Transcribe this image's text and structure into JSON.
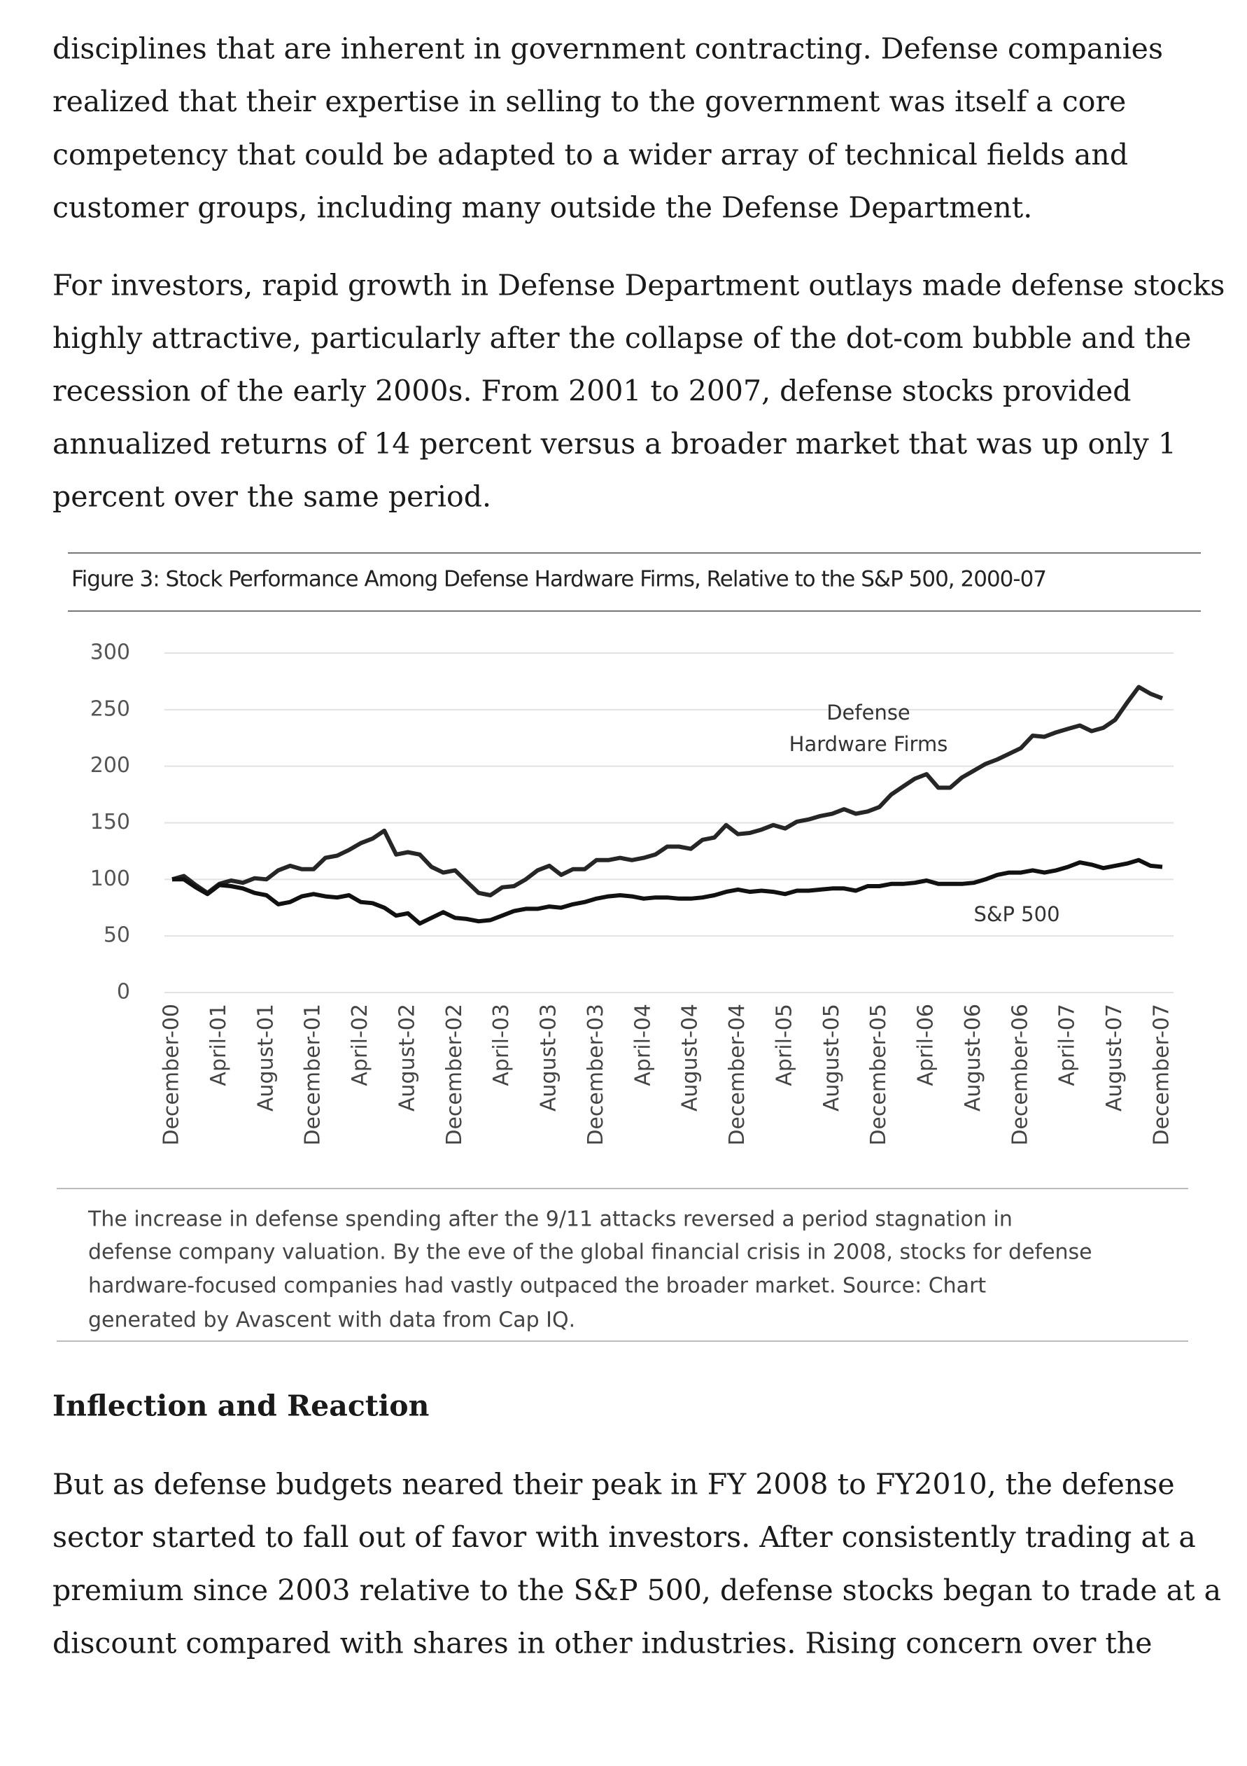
{
  "paragraph_1": [
    "disciplines that are inherent in government contracting. Defense companies",
    "realized that their expertise in selling to the government was itself a core",
    "competency that could be adapted to a wider array of technical fields and",
    "customer groups, including many outside the Defense Department."
  ],
  "paragraph_2": [
    "For investors, rapid growth in Defense Department outlays made defense stocks",
    "highly attractive, particularly after the collapse of the dot-com bubble and the",
    "recession of the early 2000s. From 2001 to 2007, defense stocks provided",
    "annualized returns of 14 percent versus a broader market that was up only 1",
    "percent over the same period."
  ],
  "chart_data": {
    "type": "line",
    "title": "Figure 3: Stock Performance Among Defense Hardware Firms, Relative to the S&P 500, 2000-07",
    "categories": [
      "December-00",
      null,
      null,
      null,
      "April-01",
      null,
      null,
      null,
      "August-01",
      null,
      null,
      null,
      "December-01",
      null,
      null,
      null,
      "April-02",
      null,
      null,
      null,
      "August-02",
      null,
      null,
      null,
      "December-02",
      null,
      null,
      null,
      "April-03",
      null,
      null,
      null,
      "August-03",
      null,
      null,
      null,
      "December-03",
      null,
      null,
      null,
      "April-04",
      null,
      null,
      null,
      "August-04",
      null,
      null,
      null,
      "December-04",
      null,
      null,
      null,
      "April-05",
      null,
      null,
      null,
      "August-05",
      null,
      null,
      null,
      "December-05",
      null,
      null,
      null,
      "April-06",
      null,
      null,
      null,
      "August-06",
      null,
      null,
      null,
      "December-06",
      null,
      null,
      null,
      "April-07",
      null,
      null,
      null,
      "August-07",
      null,
      null,
      null,
      "December-07"
    ],
    "series": [
      {
        "name": "Defense Hardware Firms",
        "color": "#262626",
        "values": [
          100,
          103,
          95,
          88,
          96,
          99,
          97,
          101,
          100,
          108,
          112,
          109,
          109,
          119,
          121,
          126,
          132,
          136,
          143,
          122,
          124,
          122,
          111,
          106,
          108,
          98,
          88,
          86,
          93,
          94,
          100,
          108,
          112,
          104,
          109,
          109,
          117,
          117,
          119,
          117,
          119,
          122,
          129,
          129,
          127,
          135,
          137,
          148,
          140,
          141,
          144,
          148,
          145,
          151,
          153,
          156,
          158,
          162,
          158,
          160,
          164,
          175,
          182,
          189,
          193,
          181,
          181,
          190,
          196,
          202,
          206,
          211,
          216,
          227,
          226,
          230,
          233,
          236,
          231,
          234,
          241,
          256,
          270,
          264,
          260
        ]
      },
      {
        "name": "S&P 500",
        "color": "#111111",
        "values": [
          100,
          100,
          93,
          87,
          95,
          94,
          92,
          88,
          86,
          78,
          80,
          85,
          87,
          85,
          84,
          86,
          80,
          79,
          75,
          68,
          70,
          61,
          66,
          71,
          66,
          65,
          63,
          64,
          68,
          72,
          74,
          74,
          76,
          75,
          78,
          80,
          83,
          85,
          86,
          85,
          83,
          84,
          84,
          83,
          83,
          84,
          86,
          89,
          91,
          89,
          90,
          89,
          87,
          90,
          90,
          91,
          92,
          92,
          90,
          94,
          94,
          96,
          96,
          97,
          99,
          96,
          96,
          96,
          97,
          100,
          104,
          106,
          106,
          108,
          106,
          108,
          111,
          115,
          113,
          110,
          112,
          114,
          117,
          112,
          111
        ]
      }
    ],
    "ylim": [
      0,
      300
    ],
    "yticks": [
      0,
      50,
      100,
      150,
      200,
      250,
      300
    ],
    "grid": true
  },
  "caption": [
    "The increase in defense spending after the 9/11 attacks reversed a period stagnation in",
    "defense company valuation. By the eve of the global financial crisis in 2008, stocks for defense",
    "hardware-focused companies had vastly outpaced the broader market. Source: Chart",
    "generated by Avascent with data from Cap IQ."
  ],
  "heading": "Inflection and Reaction",
  "paragraph_3": [
    "But as defense budgets neared their peak in FY 2008 to FY2010, the defense",
    "sector started to fall out of favor with investors. After consistently trading at a",
    "premium since 2003 relative to the S&P 500, defense stocks began to trade at a",
    "discount compared with shares in other industries. Rising concern over the"
  ]
}
